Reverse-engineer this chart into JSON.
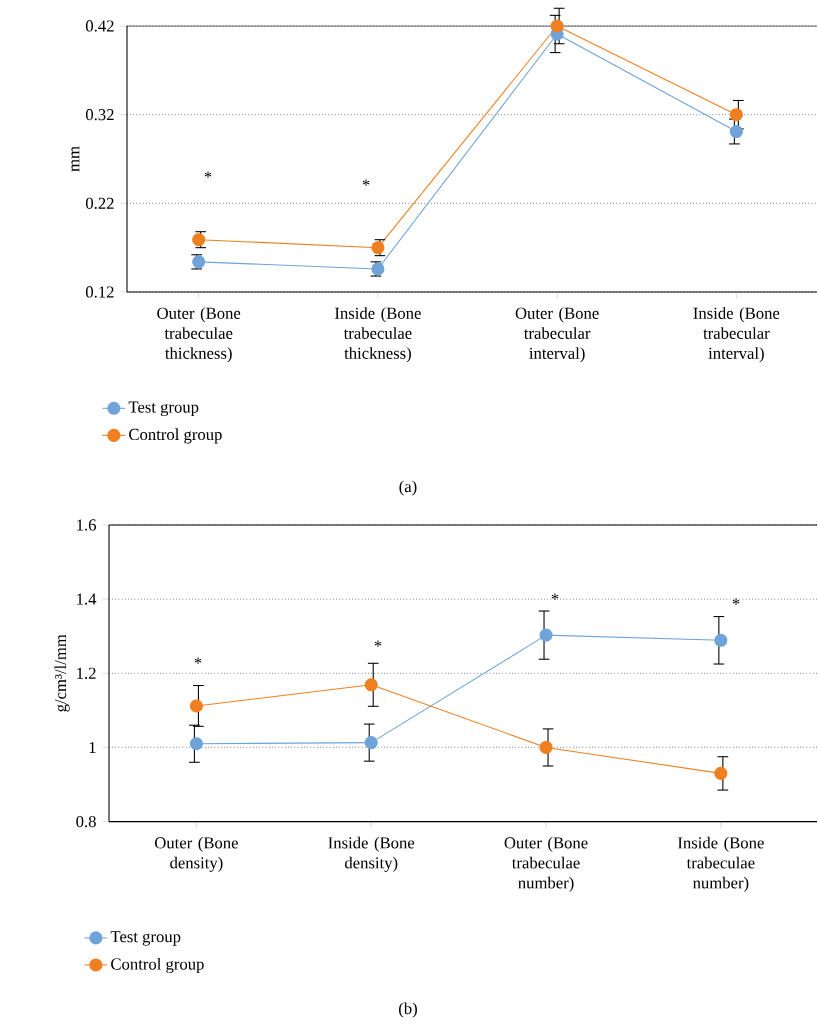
{
  "chart_data": [
    {
      "type": "line",
      "ylabel": "mm",
      "categories": [
        "Outer (Bone trabeculae thickness)",
        "Inside (Bone trabeculae thickness)",
        "Outer (Bone trabecular interval)",
        "Inside (Bone trabecular interval)"
      ],
      "ylim": [
        0.12,
        0.42
      ],
      "yticks": [
        0.12,
        0.22,
        0.32,
        0.42
      ],
      "grid": "y",
      "legend": "bottom left",
      "marker": "circle",
      "line_style": "solid",
      "series": [
        {
          "name": "Test group",
          "color": "#6fa3d9",
          "values": [
            0.154,
            0.146,
            0.411,
            0.301
          ],
          "errors": [
            0.008,
            0.008,
            0.021,
            0.014
          ]
        },
        {
          "name": "Control group",
          "color": "#f07f20",
          "values": [
            0.179,
            0.17,
            0.42,
            0.32
          ],
          "errors": [
            0.009,
            0.009,
            0.02,
            0.016
          ]
        }
      ],
      "annotations": [
        "*",
        "*",
        "(a)"
      ]
    },
    {
      "type": "line",
      "ylabel": "g/cm³/l/mm",
      "categories": [
        "Outer (Bone density)",
        "Inside (Bone density)",
        "Outer (Bone trabeculae number)",
        "Inside (Bone trabeculae number)"
      ],
      "ylim": [
        0.8,
        1.6
      ],
      "yticks": [
        0.8,
        1,
        1.2,
        1.4,
        1.6
      ],
      "grid": "y",
      "legend": "bottom left",
      "marker": "circle",
      "line_style": "solid",
      "series": [
        {
          "name": "Test group",
          "color": "#6fa3d9",
          "values": [
            1.01,
            1.013,
            1.303,
            1.289
          ],
          "errors": [
            0.05,
            0.05,
            0.065,
            0.064
          ]
        },
        {
          "name": "Control group",
          "color": "#f07f20",
          "values": [
            1.112,
            1.169,
            1.0,
            0.93
          ],
          "errors": [
            0.055,
            0.058,
            0.05,
            0.045
          ]
        }
      ],
      "annotations": [
        "*",
        "*",
        "*",
        "*",
        "(b)"
      ]
    }
  ]
}
